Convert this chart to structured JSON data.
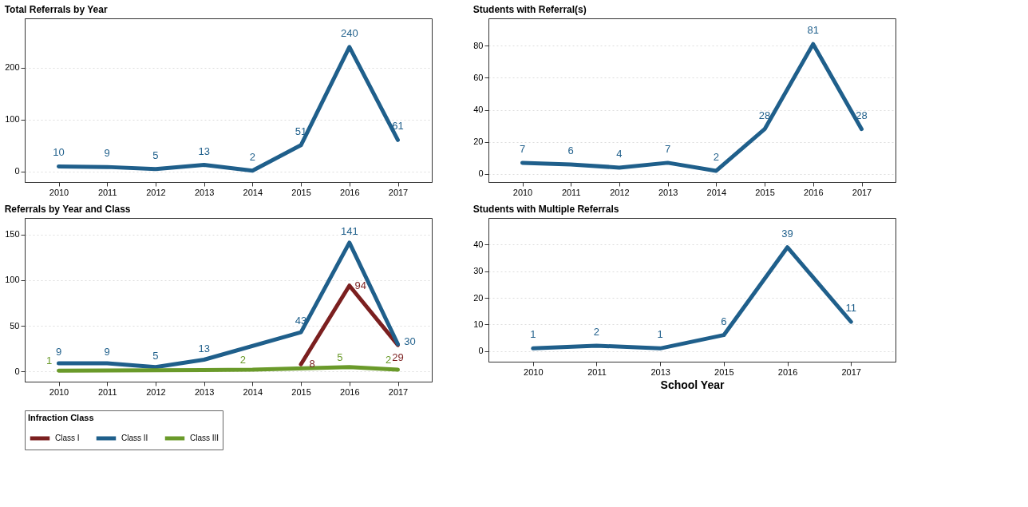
{
  "chart_data": [
    {
      "type": "line",
      "title": "Total Referrals by Year",
      "categories": [
        "2010",
        "2011",
        "2012",
        "2013",
        "2014",
        "2015",
        "2016",
        "2017"
      ],
      "ylim": [
        -20,
        295
      ],
      "yticks": [
        0,
        100,
        200
      ],
      "grid": "y",
      "data_labels": true,
      "series": [
        {
          "color": "#1f5f8b",
          "values": [
            10,
            9,
            5,
            13,
            2,
            51,
            240,
            61
          ]
        }
      ]
    },
    {
      "type": "line",
      "title": "Students with Referral(s)",
      "categories": [
        "2010",
        "2011",
        "2012",
        "2013",
        "2014",
        "2015",
        "2016",
        "2017"
      ],
      "ylim": [
        -5,
        97
      ],
      "yticks": [
        0,
        20,
        40,
        60,
        80
      ],
      "grid": "y",
      "data_labels": true,
      "series": [
        {
          "color": "#1f5f8b",
          "values": [
            7,
            6,
            4,
            7,
            2,
            28,
            81,
            28
          ]
        }
      ]
    },
    {
      "type": "line",
      "title": "Referrals by Year and Class",
      "categories": [
        "2010",
        "2011",
        "2012",
        "2013",
        "2014",
        "2015",
        "2016",
        "2017"
      ],
      "ylim": [
        -11,
        168
      ],
      "yticks": [
        0,
        50,
        100,
        150
      ],
      "grid": "y",
      "data_labels": true,
      "legend": "bottom",
      "legend_title": "Infraction Class",
      "series": [
        {
          "name": "Class I",
          "color": "#7b1f1f",
          "values": [
            null,
            null,
            null,
            null,
            null,
            8,
            94,
            29
          ]
        },
        {
          "name": "Class II",
          "color": "#1f5f8b",
          "values": [
            9,
            9,
            5,
            13,
            null,
            43,
            141,
            30
          ]
        },
        {
          "name": "Class III",
          "color": "#6a9a2a",
          "values": [
            1,
            null,
            null,
            null,
            2,
            null,
            5,
            2
          ]
        }
      ]
    },
    {
      "type": "line",
      "title": "Students with Multiple Referrals",
      "xlabel": "School Year",
      "categories": [
        "2010",
        "2011",
        "2013",
        "2015",
        "2016",
        "2017"
      ],
      "ylim": [
        -4,
        50
      ],
      "yticks": [
        0,
        10,
        20,
        30,
        40
      ],
      "grid": "y",
      "data_labels": true,
      "series": [
        {
          "color": "#1f5f8b",
          "values": [
            1,
            2,
            1,
            6,
            39,
            11
          ]
        }
      ]
    }
  ]
}
